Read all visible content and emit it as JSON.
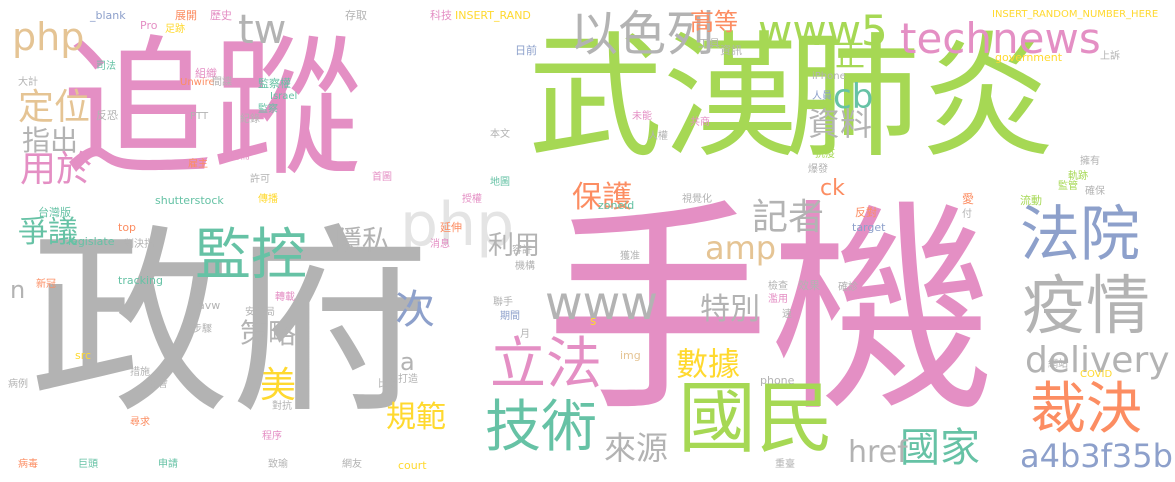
{
  "palette": {
    "pink": "#e48fc4",
    "green": "#a6d854",
    "gray": "#b3b3b3",
    "blue": "#8da0cb",
    "orange": "#fc8d62",
    "teal": "#66c2a5",
    "yellow": "#ffd92f",
    "tan": "#e5c494"
  },
  "words": [
    {
      "text": "追蹤",
      "color": "pink"
    },
    {
      "text": "政府",
      "color": "gray"
    },
    {
      "text": "手機",
      "color": "pink"
    },
    {
      "text": "武漢",
      "color": "green"
    },
    {
      "text": "肺炎",
      "color": "green"
    },
    {
      "text": "國民",
      "color": "green"
    },
    {
      "text": "technews",
      "color": "pink"
    },
    {
      "text": "www5",
      "color": "green"
    },
    {
      "text": "以色列",
      "color": "gray"
    },
    {
      "text": "法院",
      "color": "blue"
    },
    {
      "text": "疫情",
      "color": "gray"
    },
    {
      "text": "監控",
      "color": "teal"
    },
    {
      "text": "技術",
      "color": "teal"
    },
    {
      "text": "立法",
      "color": "pink"
    },
    {
      "text": "www",
      "color": "gray"
    },
    {
      "text": "裁決",
      "color": "orange"
    },
    {
      "text": "delivery",
      "color": "gray"
    },
    {
      "text": "php",
      "color": "tan"
    },
    {
      "text": "tw",
      "color": "gray"
    },
    {
      "text": "定位",
      "color": "tan"
    },
    {
      "text": "高等",
      "color": "orange"
    },
    {
      "text": "cb",
      "color": "teal"
    },
    {
      "text": "資料",
      "color": "gray"
    },
    {
      "text": "保護",
      "color": "orange"
    },
    {
      "text": "記者",
      "color": "gray"
    },
    {
      "text": "amp",
      "color": "tan"
    },
    {
      "text": "數據",
      "color": "yellow"
    },
    {
      "text": "來源",
      "color": "gray"
    },
    {
      "text": "國家",
      "color": "teal"
    },
    {
      "text": "a4b3f35b",
      "color": "blue"
    },
    {
      "text": "href",
      "color": "gray"
    },
    {
      "text": "特別",
      "color": "gray"
    },
    {
      "text": "策略",
      "color": "gray"
    },
    {
      "text": "隱私",
      "color": "gray"
    },
    {
      "text": "利用",
      "color": "gray"
    },
    {
      "text": "次",
      "color": "blue"
    },
    {
      "text": "美",
      "color": "yellow"
    },
    {
      "text": "規範",
      "color": "yellow"
    },
    {
      "text": "php",
      "color": "gray"
    },
    {
      "text": "指出",
      "color": "gray"
    },
    {
      "text": "用於",
      "color": "pink"
    },
    {
      "text": "爭議",
      "color": "teal"
    },
    {
      "text": "正",
      "color": "green"
    },
    {
      "text": "ck",
      "color": "orange"
    },
    {
      "text": "a",
      "color": "gray"
    },
    {
      "text": "n",
      "color": "gray"
    },
    {
      "text": "_blank",
      "color": "blue"
    },
    {
      "text": "Pro",
      "color": "pink"
    },
    {
      "text": "展開",
      "color": "orange"
    },
    {
      "text": "歷史",
      "color": "pink"
    },
    {
      "text": "存取",
      "color": "gray"
    },
    {
      "text": "科技",
      "color": "pink"
    },
    {
      "text": "INSERT_RAND",
      "color": "yellow"
    },
    {
      "text": "INSERT_RANDOM_NUMBER_HERE",
      "color": "yellow"
    },
    {
      "text": "工具",
      "color": "gray"
    },
    {
      "text": "資訊",
      "color": "gray"
    },
    {
      "text": "日前",
      "color": "blue"
    },
    {
      "text": "government",
      "color": "yellow"
    },
    {
      "text": "上訴",
      "color": "gray"
    },
    {
      "text": "司法",
      "color": "teal"
    },
    {
      "text": "足跡",
      "color": "yellow"
    },
    {
      "text": "組織",
      "color": "pink"
    },
    {
      "text": "監察權",
      "color": "teal"
    },
    {
      "text": "Unwire",
      "color": "orange"
    },
    {
      "text": "大計",
      "color": "gray"
    },
    {
      "text": "Israel",
      "color": "teal"
    },
    {
      "text": "間諜",
      "color": "gray"
    },
    {
      "text": "監察",
      "color": "teal"
    },
    {
      "text": "iPhone",
      "color": "gray"
    },
    {
      "text": "人員",
      "color": "blue"
    },
    {
      "text": "反恐",
      "color": "gray"
    },
    {
      "text": "PTT",
      "color": "gray"
    },
    {
      "text": "紀錄",
      "color": "gray"
    },
    {
      "text": "未能",
      "color": "pink"
    },
    {
      "text": "共商",
      "color": "pink"
    },
    {
      "text": "本文",
      "color": "gray"
    },
    {
      "text": "人權",
      "color": "gray"
    },
    {
      "text": "抗疫",
      "color": "green"
    },
    {
      "text": "雇主",
      "color": "orange"
    },
    {
      "text": "尚需",
      "color": "pink"
    },
    {
      "text": "許可",
      "color": "gray"
    },
    {
      "text": "首圖",
      "color": "pink"
    },
    {
      "text": "爆發",
      "color": "gray"
    },
    {
      "text": "擁有",
      "color": "gray"
    },
    {
      "text": "地圖",
      "color": "teal"
    },
    {
      "text": "軌跡",
      "color": "green"
    },
    {
      "text": "監管",
      "color": "green"
    },
    {
      "text": "確保",
      "color": "gray"
    },
    {
      "text": "shutterstock",
      "color": "teal"
    },
    {
      "text": "傳播",
      "color": "yellow"
    },
    {
      "text": "授權",
      "color": "pink"
    },
    {
      "text": "zoneid",
      "color": "teal"
    },
    {
      "text": "視覺化",
      "color": "gray"
    },
    {
      "text": "反對",
      "color": "orange"
    },
    {
      "text": "流動",
      "color": "green"
    },
    {
      "text": "愛",
      "color": "orange"
    },
    {
      "text": "台灣版",
      "color": "teal"
    },
    {
      "text": "付",
      "color": "gray"
    },
    {
      "text": "top",
      "color": "orange"
    },
    {
      "text": "延伸",
      "color": "orange"
    },
    {
      "text": "target",
      "color": "blue"
    },
    {
      "text": "legislate",
      "color": "teal"
    },
    {
      "text": "判決指",
      "color": "gray"
    },
    {
      "text": "消息",
      "color": "pink"
    },
    {
      "text": "容許",
      "color": "gray"
    },
    {
      "text": "機構",
      "color": "gray"
    },
    {
      "text": "獲准",
      "color": "gray"
    },
    {
      "text": "新冠",
      "color": "orange"
    },
    {
      "text": "tracking",
      "color": "teal"
    },
    {
      "text": "效果",
      "color": "gray"
    },
    {
      "text": "檢查",
      "color": "gray"
    },
    {
      "text": "確診",
      "color": "gray"
    },
    {
      "text": "avw",
      "color": "gray"
    },
    {
      "text": "轉載",
      "color": "pink"
    },
    {
      "text": "聯手",
      "color": "gray"
    },
    {
      "text": "濫用",
      "color": "pink"
    },
    {
      "text": "安全局",
      "color": "gray"
    },
    {
      "text": "步驟",
      "color": "gray"
    },
    {
      "text": "期間",
      "color": "blue"
    },
    {
      "text": "s",
      "color": "yellow"
    },
    {
      "text": "速",
      "color": "gray"
    },
    {
      "text": "月",
      "color": "gray"
    },
    {
      "text": "img",
      "color": "tan"
    },
    {
      "text": "src",
      "color": "yellow"
    },
    {
      "text": "措施",
      "color": "gray"
    },
    {
      "text": "打造",
      "color": "gray"
    },
    {
      "text": "病例",
      "color": "gray"
    },
    {
      "text": "議會",
      "color": "gray"
    },
    {
      "text": "phone",
      "color": "gray"
    },
    {
      "text": "網站",
      "color": "gray"
    },
    {
      "text": "COVID",
      "color": "yellow"
    },
    {
      "text": "比對",
      "color": "gray"
    },
    {
      "text": "對抗",
      "color": "gray"
    },
    {
      "text": "尋求",
      "color": "orange"
    },
    {
      "text": "程序",
      "color": "pink"
    },
    {
      "text": "病毒",
      "color": "orange"
    },
    {
      "text": "巨頭",
      "color": "teal"
    },
    {
      "text": "申請",
      "color": "teal"
    },
    {
      "text": "致瑜",
      "color": "gray"
    },
    {
      "text": "網友",
      "color": "gray"
    },
    {
      "text": "court",
      "color": "yellow"
    },
    {
      "text": "重臺",
      "color": "gray"
    }
  ]
}
